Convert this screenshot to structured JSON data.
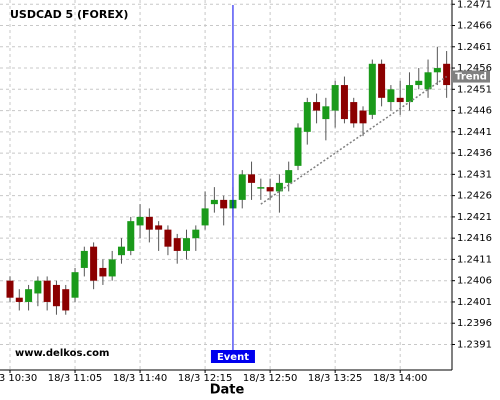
{
  "chart_data": {
    "type": "candlestick",
    "title": "USDCAD 5 (FOREX)",
    "watermark": "www.delkos.com",
    "x_label": "Date",
    "categories": [
      "18/3 10:30",
      null,
      null,
      null,
      null,
      null,
      null,
      "18/3 11:05",
      null,
      null,
      null,
      null,
      null,
      null,
      "18/3 11:40",
      null,
      null,
      null,
      null,
      null,
      null,
      "18/3 12:15",
      null,
      null,
      null,
      null,
      null,
      null,
      "18/3 12:50",
      null,
      null,
      null,
      null,
      null,
      null,
      "18/3 13:25",
      null,
      null,
      null,
      null,
      null,
      null,
      "18/3 14:00",
      null,
      null,
      null,
      null,
      null
    ],
    "open": [
      1.2406,
      1.2402,
      1.2401,
      1.2403,
      1.2406,
      1.2405,
      1.2404,
      1.2402,
      1.2409,
      1.2414,
      1.2409,
      1.2407,
      1.2412,
      1.2413,
      1.2419,
      1.2421,
      1.2419,
      1.2418,
      1.2416,
      1.2413,
      1.2416,
      1.2419,
      1.2424,
      1.2425,
      1.2423,
      1.2425,
      1.2431,
      1.2428,
      1.2428,
      1.2427,
      1.2429,
      1.2433,
      1.2441,
      1.2448,
      1.2444,
      1.2446,
      1.2452,
      1.2448,
      1.2446,
      1.2445,
      1.2457,
      1.2448,
      1.2449,
      1.2448,
      1.2452,
      1.2451,
      1.2455,
      1.2457
    ],
    "high": [
      1.2407,
      1.2404,
      1.2405,
      1.2407,
      1.2407,
      1.2406,
      1.2405,
      1.2409,
      1.2414,
      1.2415,
      1.2411,
      1.2413,
      1.2416,
      1.2421,
      1.2424,
      1.2423,
      1.242,
      1.2419,
      1.2417,
      1.2418,
      1.2419,
      1.2427,
      1.2428,
      1.2426,
      1.2428,
      1.2432,
      1.2434,
      1.243,
      1.243,
      1.2431,
      1.2434,
      1.2443,
      1.2449,
      1.245,
      1.2449,
      1.2453,
      1.2454,
      1.2449,
      1.2447,
      1.2458,
      1.2458,
      1.2452,
      1.2453,
      1.2455,
      1.2456,
      1.2458,
      1.2461,
      1.246
    ],
    "low": [
      1.2401,
      1.2399,
      1.2399,
      1.24,
      1.2399,
      1.2398,
      1.2398,
      1.2401,
      1.2407,
      1.2404,
      1.2405,
      1.2406,
      1.241,
      1.2412,
      1.2416,
      1.2415,
      1.2413,
      1.2412,
      1.241,
      1.2411,
      1.2413,
      1.2418,
      1.2422,
      1.2419,
      1.2421,
      1.2423,
      1.2425,
      1.2425,
      1.2425,
      1.2422,
      1.2427,
      1.2432,
      1.2438,
      1.2443,
      1.2439,
      1.2442,
      1.2443,
      1.2442,
      1.244,
      1.2444,
      1.2447,
      1.2446,
      1.2445,
      1.2446,
      1.2451,
      1.2449,
      1.2452,
      1.2449
    ],
    "close": [
      1.2402,
      1.2401,
      1.2404,
      1.2406,
      1.2401,
      1.24,
      1.2399,
      1.2408,
      1.2413,
      1.2406,
      1.2407,
      1.2411,
      1.2414,
      1.242,
      1.2421,
      1.2418,
      1.2418,
      1.2414,
      1.2413,
      1.2416,
      1.2418,
      1.2423,
      1.2425,
      1.2423,
      1.2425,
      1.2431,
      1.2429,
      1.2428,
      1.2427,
      1.2429,
      1.2432,
      1.2442,
      1.2448,
      1.2446,
      1.2447,
      1.2452,
      1.2444,
      1.2443,
      1.2443,
      1.2457,
      1.2449,
      1.2451,
      1.2448,
      1.2452,
      1.2453,
      1.2455,
      1.2456,
      1.2452
    ],
    "up_color": "#1a9a1a",
    "down_color": "#8b0000",
    "ylim": [
      1.2385,
      1.2472
    ],
    "yticks": [
      1.2391,
      1.2396,
      1.2401,
      1.2406,
      1.2411,
      1.2416,
      1.2421,
      1.2426,
      1.2431,
      1.2436,
      1.2441,
      1.2446,
      1.2451,
      1.2456,
      1.2461,
      1.2466,
      1.2471
    ],
    "grid": true,
    "event": {
      "label": "Event",
      "at": 24,
      "color": "#0000ee"
    },
    "trend": {
      "label": "Trend",
      "at": [
        27,
        47
      ],
      "values": [
        1.2424,
        1.2454
      ],
      "color": "#808080"
    }
  }
}
